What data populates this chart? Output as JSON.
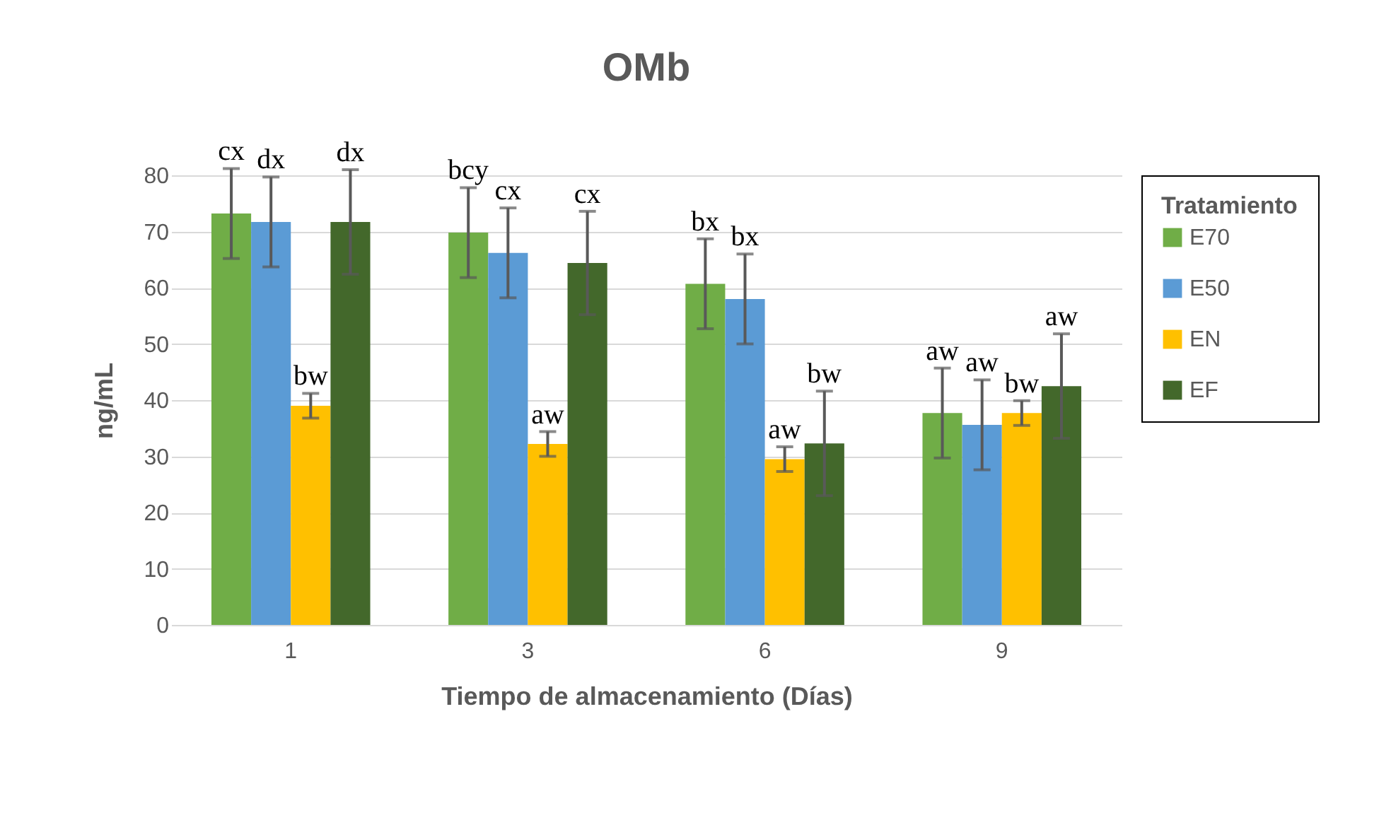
{
  "chart_data": {
    "type": "bar",
    "title": "OMb",
    "xlabel": "Tiempo de almacenamiento (Días)",
    "ylabel": "ng/mL",
    "legend_title": "Tratamiento",
    "categories": [
      "1",
      "3",
      "6",
      "9"
    ],
    "series": [
      {
        "name": "E70",
        "color": "#70ad47",
        "values": [
          73.2,
          69.8,
          60.7,
          37.7
        ],
        "errors": [
          8,
          8,
          8,
          8
        ],
        "value_labels": [
          "cx",
          "bcy",
          "bx",
          "aw"
        ]
      },
      {
        "name": "E50",
        "color": "#5b9bd5",
        "values": [
          71.7,
          66.2,
          58,
          35.6
        ],
        "errors": [
          8,
          8,
          8,
          8
        ],
        "value_labels": [
          "dx",
          "cx",
          "bx",
          "aw"
        ]
      },
      {
        "name": "EN",
        "color": "#ffc000",
        "values": [
          39,
          32.2,
          29.5,
          37.7
        ],
        "errors": [
          2.2,
          2.2,
          2.2,
          2.2
        ],
        "value_labels": [
          "bw",
          "aw",
          "aw",
          "bw"
        ]
      },
      {
        "name": "EF",
        "color": "#43682b",
        "values": [
          71.7,
          64.4,
          32.3,
          42.5
        ],
        "errors": [
          9.3,
          9.2,
          9.3,
          9.3
        ],
        "value_labels": [
          "dx",
          "cx",
          "bw",
          "aw"
        ]
      }
    ],
    "ylim": [
      0,
      80
    ],
    "yticks": [
      0,
      10,
      20,
      30,
      40,
      50,
      60,
      70,
      80
    ],
    "grid": "y",
    "legend": "right"
  }
}
